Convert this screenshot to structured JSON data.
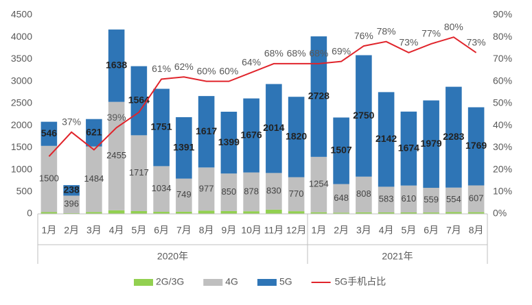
{
  "chart_data": {
    "type": "bar",
    "stacked": true,
    "category_groups": [
      {
        "name": "2020年",
        "categories": [
          "1月",
          "2月",
          "3月",
          "4月",
          "5月",
          "6月",
          "7月",
          "8月",
          "9月",
          "10月",
          "11月",
          "12月"
        ]
      },
      {
        "name": "2021年",
        "categories": [
          "1月",
          "2月",
          "3月",
          "4月",
          "5月",
          "6月",
          "7月",
          "8月"
        ]
      }
    ],
    "series": [
      {
        "name": "2G/3G",
        "color": "#92d050",
        "show_labels": false,
        "values": [
          39,
          16,
          41,
          80,
          62,
          46,
          49,
          73,
          63,
          59,
          95,
          60,
          36,
          26,
          34,
          31,
          31,
          30,
          40,
          37
        ]
      },
      {
        "name": "4G",
        "color": "#bfbfbf",
        "show_labels": true,
        "values": [
          1500,
          396,
          1484,
          2455,
          1717,
          1034,
          749,
          977,
          850,
          878,
          830,
          770,
          1254,
          648,
          808,
          583,
          610,
          559,
          554,
          607
        ]
      },
      {
        "name": "5G",
        "color": "#2e75b6",
        "show_labels": true,
        "values": [
          546,
          238,
          621,
          1638,
          1564,
          1751,
          1391,
          1617,
          1399,
          1676,
          2014,
          1820,
          2728,
          1507,
          2750,
          2142,
          1674,
          1979,
          2283,
          1769
        ]
      },
      {
        "name": "5G手机占比",
        "type": "line",
        "axis": "y2",
        "color": "#e0242b",
        "show_labels": true,
        "values": [
          26,
          37,
          29,
          39,
          46,
          61,
          62,
          60,
          60,
          64,
          68,
          68,
          68,
          69,
          76,
          78,
          73,
          77,
          80,
          73
        ],
        "value_labels": [
          null,
          "37%",
          null,
          "39%",
          null,
          "61%",
          "62%",
          "60%",
          "60%",
          "64%",
          "68%",
          "68%",
          "68%",
          "69%",
          "76%",
          "78%",
          "73%",
          "77%",
          "80%",
          "73%"
        ]
      }
    ],
    "ylim": [
      0,
      4500
    ],
    "yticks": [
      0,
      500,
      1000,
      1500,
      2000,
      2500,
      3000,
      3500,
      4000,
      4500
    ],
    "y2lim": [
      0,
      90
    ],
    "y2ticks": [
      {
        "value": 0,
        "label": "0%"
      },
      {
        "value": 10,
        "label": "10%"
      },
      {
        "value": 20,
        "label": "20%"
      },
      {
        "value": 30,
        "label": "30%"
      },
      {
        "value": 40,
        "label": "40%"
      },
      {
        "value": 50,
        "label": "50%"
      },
      {
        "value": 60,
        "label": "60%"
      },
      {
        "value": 70,
        "label": "70%"
      },
      {
        "value": 80,
        "label": "80%"
      },
      {
        "value": 90,
        "label": "90%"
      }
    ],
    "grid": false,
    "legend": "bottom"
  }
}
